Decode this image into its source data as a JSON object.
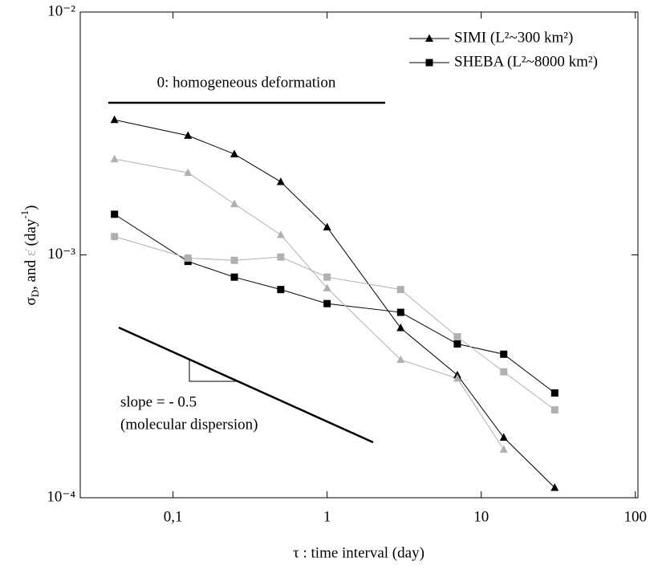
{
  "chart_data": {
    "type": "line",
    "xlabel": "τ : time interval (day)",
    "ylabel": [
      "σ",
      "D",
      ", and ",
      "ε̇",
      " (day",
      "-1",
      ")"
    ],
    "x": [
      0.0417,
      0.125,
      0.25,
      0.5,
      1,
      3,
      7,
      14,
      30
    ],
    "xlim": [
      0.025,
      104
    ],
    "ylim": [
      0.0001,
      0.01
    ],
    "xscale": "log",
    "yscale": "log",
    "xticks": [
      {
        "value": 0.1,
        "label": "0,1"
      },
      1,
      10,
      100
    ],
    "yticks": [
      {
        "value": 0.0001,
        "label": "10⁻⁴"
      },
      {
        "value": 0.001,
        "label": "10⁻³"
      },
      {
        "value": 0.01,
        "label": "10⁻²"
      }
    ],
    "legend": "top-right",
    "series": [
      {
        "name": "SIMI (L²~300 km²)",
        "color": "#000000",
        "marker": "triangle",
        "values": [
          0.0036,
          0.0031,
          0.0026,
          0.002,
          0.0013,
          0.0005,
          0.00032,
          0.000177,
          0.00011
        ]
      },
      {
        "name": "SHEBA (L²~8000 km²)",
        "color": "#000000",
        "marker": "square",
        "values": [
          0.00147,
          0.00094,
          0.00081,
          0.00072,
          0.00063,
          0.00058,
          0.00043,
          0.00039,
          0.00027
        ]
      },
      {
        "color": "#b0b0b0",
        "marker": "triangle",
        "values": [
          0.00248,
          0.00218,
          0.00162,
          0.00121,
          0.00073,
          0.00037,
          0.00031,
          0.000158,
          null
        ]
      },
      {
        "color": "#b0b0b0",
        "marker": "square",
        "values": [
          0.00119,
          0.00097,
          0.00095,
          0.00098,
          0.00081,
          0.00072,
          0.00046,
          0.00033,
          0.00023
        ]
      }
    ],
    "annotations": [
      "0: homogeneous deformation",
      "slope = - 0.5",
      "(molecular dispersion)"
    ]
  }
}
